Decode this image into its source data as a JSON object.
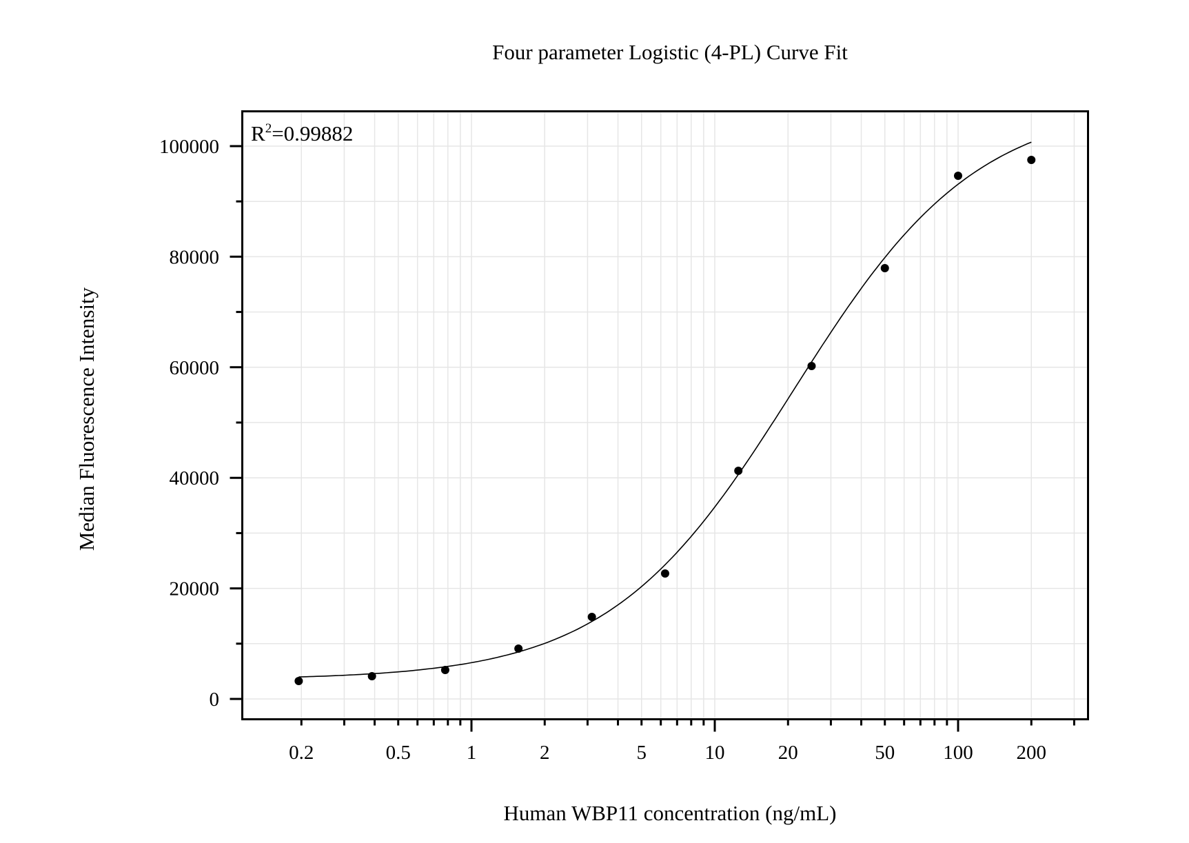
{
  "chart_data": {
    "type": "scatter",
    "title": "Four parameter Logistic (4-PL) Curve Fit",
    "xlabel": "Human WBP11 concentration (ng/mL)",
    "ylabel": "Median Fluorescence Intensity",
    "xscale": "log",
    "xlim": [
      0.15,
      350
    ],
    "ylim": [
      -4000,
      106000
    ],
    "grid": true,
    "legend": null,
    "annotation": {
      "prefix": "R",
      "sup": "2",
      "suffix": "=0.99882",
      "full": "R²=0.99882"
    },
    "x_ticks": [
      0.2,
      0.5,
      1,
      2,
      5,
      10,
      20,
      50,
      100,
      200
    ],
    "x_tick_labels": [
      "0.2",
      "0.5",
      "1",
      "2",
      "5",
      "10",
      "20",
      "50",
      "100",
      "200"
    ],
    "y_ticks": [
      0,
      20000,
      40000,
      60000,
      80000,
      100000
    ],
    "y_tick_labels": [
      "0",
      "20000",
      "40000",
      "60000",
      "80000",
      "100000"
    ],
    "series": [
      {
        "name": "Standards",
        "kind": "points",
        "x": [
          0.195,
          0.39,
          0.78,
          1.56,
          3.125,
          6.25,
          12.5,
          25,
          50,
          100,
          200
        ],
        "y": [
          3240,
          4110,
          5240,
          9100,
          14840,
          22700,
          41270,
          60220,
          77930,
          94640,
          97510
        ]
      },
      {
        "name": "4-PL fit",
        "kind": "line",
        "params": {
          "bottom": 3500,
          "top": 108000,
          "ec50": 21,
          "hill": 1.15
        },
        "x_range": [
          0.195,
          200
        ]
      }
    ]
  },
  "colors": {
    "frame": "#000000",
    "grid": "#e6e6e6",
    "points": "#000000",
    "curve": "#000000",
    "background": "#ffffff"
  }
}
